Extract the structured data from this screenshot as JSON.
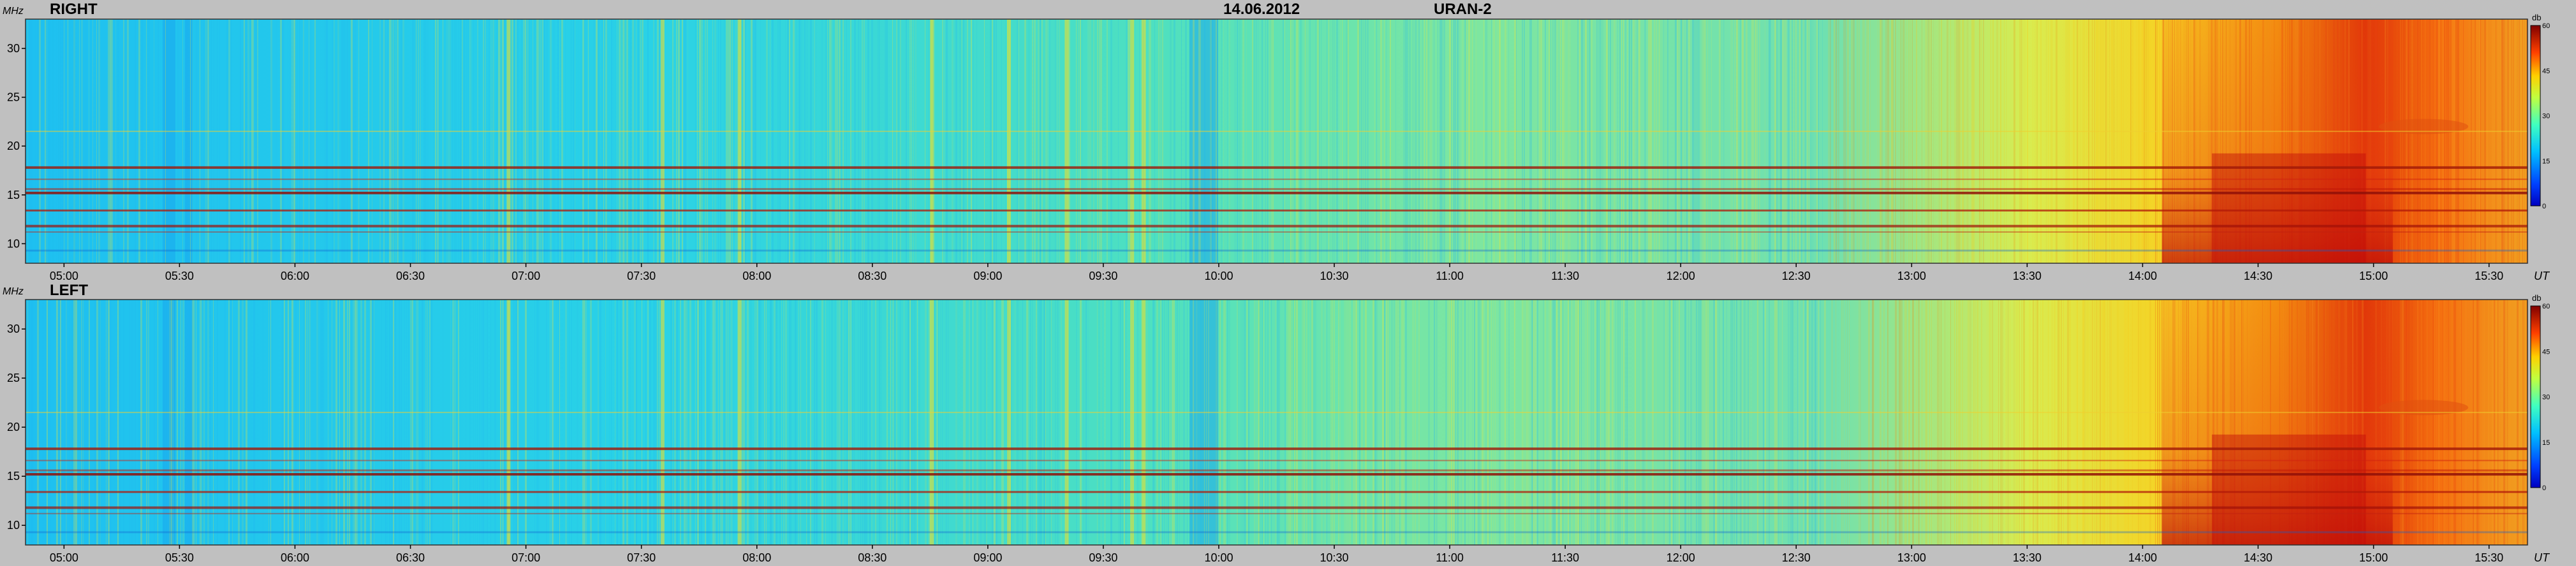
{
  "header": {
    "date": "14.06.2012",
    "instrument": "URAN-2"
  },
  "chart_data": [
    {
      "type": "heatmap",
      "title": "RIGHT",
      "ylabel": "MHz",
      "xlabel": "UT",
      "colorbar_unit": "db",
      "y_ticks": [
        "10",
        "15",
        "20",
        "25",
        "30"
      ],
      "x_ticks": [
        "05:00",
        "05:30",
        "06:00",
        "06:30",
        "07:00",
        "07:30",
        "08:00",
        "08:30",
        "09:00",
        "09:30",
        "10:00",
        "10:30",
        "11:00",
        "11:30",
        "12:00",
        "12:30",
        "13:00",
        "13:30",
        "14:00",
        "14:30",
        "15:00",
        "15:30"
      ],
      "colorbar_ticks": [
        "0",
        "15",
        "30",
        "45",
        "60"
      ],
      "ylim": [
        8,
        33
      ],
      "xlim": [
        "04:50",
        "15:40"
      ],
      "zlim": [
        0,
        60
      ]
    },
    {
      "type": "heatmap",
      "title": "LEFT",
      "ylabel": "MHz",
      "xlabel": "UT",
      "colorbar_unit": "db",
      "y_ticks": [
        "10",
        "15",
        "20",
        "25",
        "30"
      ],
      "x_ticks": [
        "05:00",
        "05:30",
        "06:00",
        "06:30",
        "07:00",
        "07:30",
        "08:00",
        "08:30",
        "09:00",
        "09:30",
        "10:00",
        "10:30",
        "11:00",
        "11:30",
        "12:00",
        "12:30",
        "13:00",
        "13:30",
        "14:00",
        "14:30",
        "15:00",
        "15:30"
      ],
      "colorbar_ticks": [
        "0",
        "15",
        "30",
        "45",
        "60"
      ],
      "ylim": [
        8,
        33
      ],
      "xlim": [
        "04:50",
        "15:40"
      ],
      "zlim": [
        0,
        60
      ]
    }
  ]
}
